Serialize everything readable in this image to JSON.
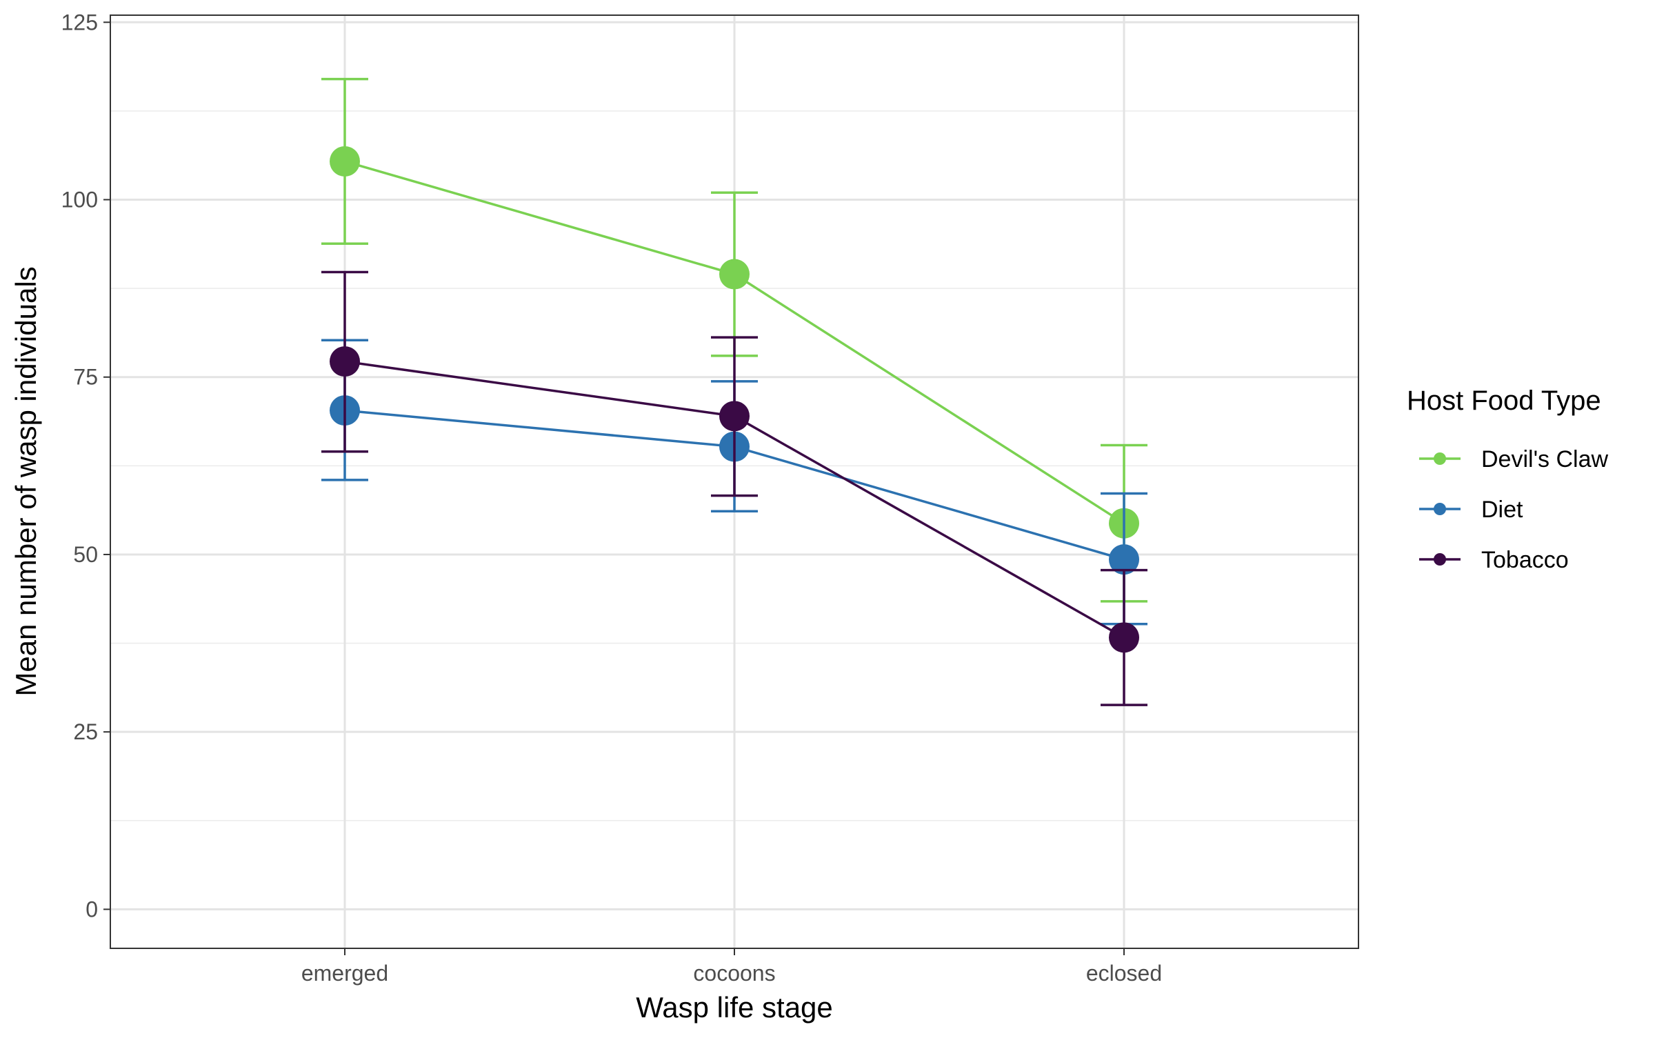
{
  "chart_data": {
    "type": "line",
    "title": "",
    "xlabel": "Wasp life stage",
    "ylabel": "Mean number of wasp individuals",
    "categories": [
      "emerged",
      "cocoons",
      "eclosed"
    ],
    "ylim": [
      -5.5,
      126
    ],
    "yticks": [
      0,
      25,
      50,
      75,
      100,
      125
    ],
    "grid": true,
    "legend": {
      "title": "Host Food Type",
      "position": "right"
    },
    "series": [
      {
        "name": "Devil's Claw",
        "color": "#7ad151",
        "values": [
          105.4,
          89.5,
          54.4
        ],
        "lower": [
          93.8,
          78.0,
          43.4
        ],
        "upper": [
          117.0,
          101.0,
          65.4
        ]
      },
      {
        "name": "Diet",
        "color": "#2c72b0",
        "values": [
          70.3,
          65.2,
          49.3
        ],
        "lower": [
          60.5,
          56.1,
          40.2
        ],
        "upper": [
          80.2,
          74.4,
          58.6
        ]
      },
      {
        "name": "Tobacco",
        "color": "#3a0a45",
        "values": [
          77.2,
          69.5,
          38.3
        ],
        "lower": [
          64.5,
          58.3,
          28.8
        ],
        "upper": [
          89.8,
          80.6,
          47.8
        ]
      }
    ]
  }
}
